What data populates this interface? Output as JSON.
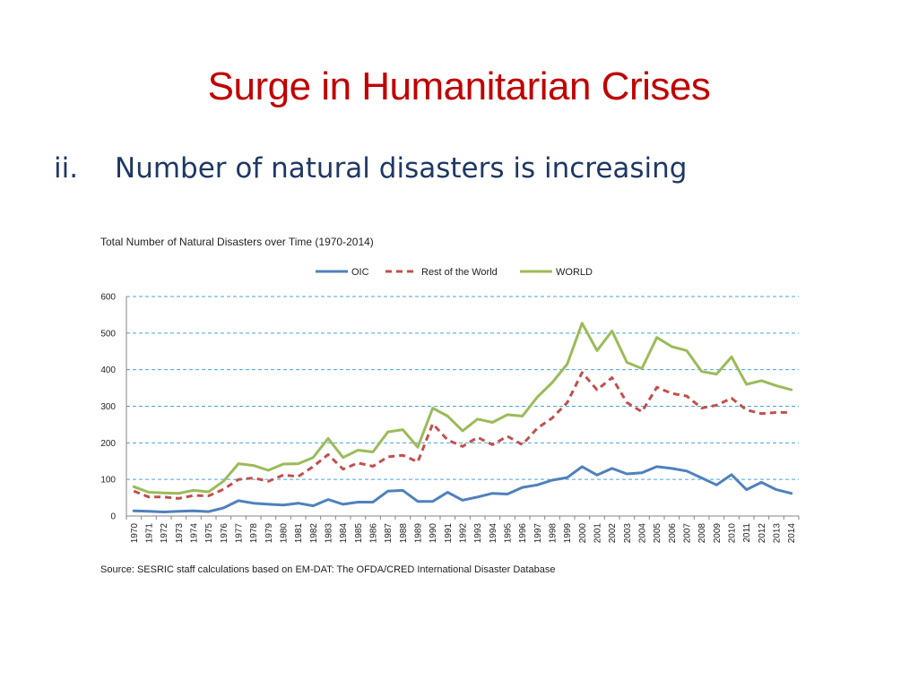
{
  "slide": {
    "title": "Surge in Humanitarian Crises",
    "bullet_number": "ii.",
    "bullet_text": "Number of natural disasters is increasing"
  },
  "source": "Source: SESRIC staff calculations based on EM-DAT: The OFDA/CRED International Disaster Database",
  "chart_data": {
    "type": "line",
    "title": "Total Number of Natural Disasters over Time (1970-2014)",
    "xlabel": "",
    "ylabel": "",
    "ylim": [
      0,
      600
    ],
    "yticks": [
      0,
      100,
      200,
      300,
      400,
      500,
      600
    ],
    "grid": true,
    "legend_position": "top",
    "x": [
      "1970",
      "1971",
      "1972",
      "1973",
      "1974",
      "1975",
      "1976",
      "1977",
      "1978",
      "1979",
      "1980",
      "1981",
      "1982",
      "1983",
      "1984",
      "1985",
      "1986",
      "1987",
      "1988",
      "1989",
      "1990",
      "1991",
      "1992",
      "1993",
      "1994",
      "1995",
      "1996",
      "1997",
      "1998",
      "1999",
      "2000",
      "2001",
      "2002",
      "2003",
      "2004",
      "2005",
      "2006",
      "2007",
      "2008",
      "2009",
      "2010",
      "2011",
      "2012",
      "2013",
      "2014"
    ],
    "series": [
      {
        "name": "OIC",
        "color": "#4f81bd",
        "style": "solid",
        "values": [
          14,
          13,
          11,
          13,
          14,
          12,
          22,
          42,
          35,
          32,
          30,
          35,
          28,
          45,
          32,
          38,
          38,
          68,
          70,
          40,
          40,
          65,
          43,
          52,
          62,
          60,
          78,
          85,
          98,
          105,
          135,
          112,
          130,
          115,
          118,
          135,
          130,
          123,
          104,
          85,
          113,
          72,
          92,
          72,
          62
        ]
      },
      {
        "name": "Rest of the World",
        "color": "#c0504d",
        "style": "dashed",
        "values": [
          68,
          52,
          52,
          48,
          56,
          55,
          73,
          100,
          104,
          95,
          112,
          108,
          135,
          168,
          128,
          145,
          136,
          162,
          166,
          148,
          252,
          208,
          190,
          215,
          195,
          218,
          195,
          240,
          268,
          310,
          392,
          345,
          378,
          310,
          285,
          352,
          335,
          328,
          295,
          303,
          322,
          290,
          280,
          283,
          283
        ]
      },
      {
        "name": "WORLD",
        "color": "#9bbb59",
        "style": "solid",
        "values": [
          80,
          65,
          63,
          62,
          70,
          66,
          95,
          143,
          138,
          125,
          142,
          143,
          160,
          212,
          160,
          180,
          175,
          230,
          236,
          188,
          295,
          273,
          233,
          265,
          256,
          277,
          273,
          325,
          365,
          415,
          527,
          452,
          506,
          420,
          403,
          488,
          463,
          452,
          395,
          388,
          435,
          360,
          370,
          356,
          345
        ]
      }
    ]
  }
}
